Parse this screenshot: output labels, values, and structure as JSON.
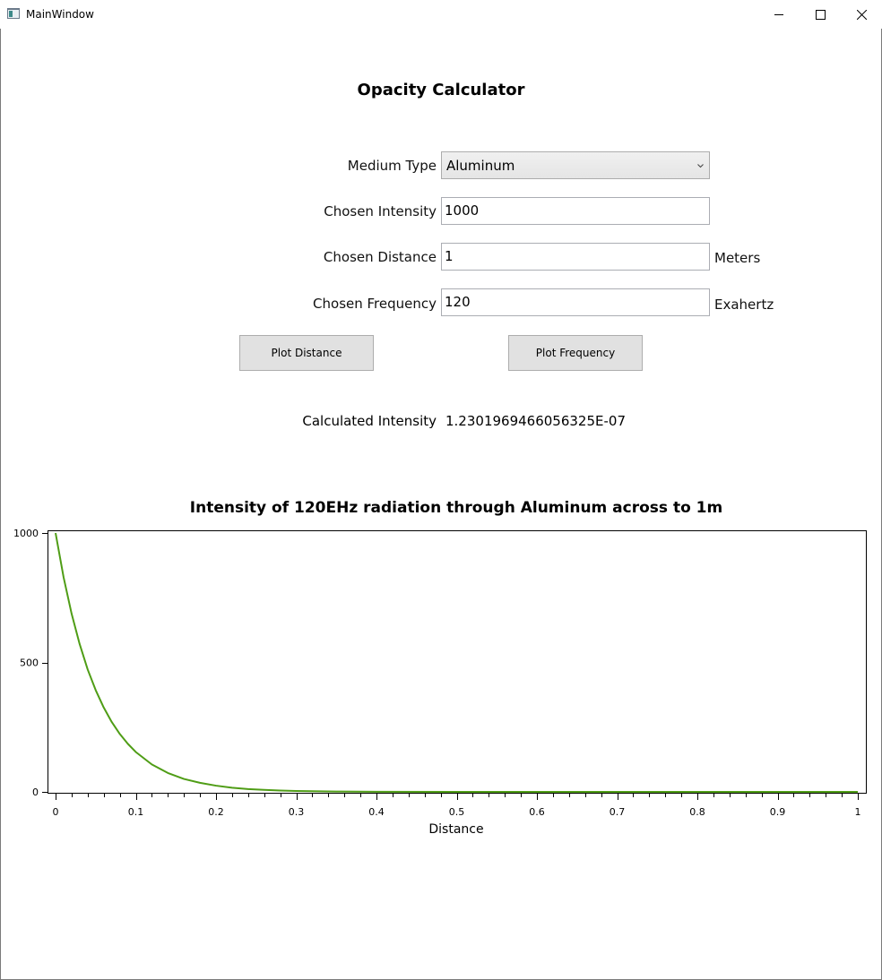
{
  "window": {
    "title": "MainWindow"
  },
  "heading": "Opacity Calculator",
  "form": {
    "medium_label": "Medium Type",
    "medium_value": "Aluminum",
    "intensity_label": "Chosen Intensity",
    "intensity_value": "1000",
    "distance_label": "Chosen Distance",
    "distance_value": "1",
    "distance_unit": "Meters",
    "frequency_label": "Chosen Frequency",
    "frequency_value": "120",
    "frequency_unit": "Exahertz"
  },
  "buttons": {
    "plot_distance": "Plot Distance",
    "plot_frequency": "Plot Frequency"
  },
  "result": {
    "label": "Calculated Intensity",
    "value": "1.2301969466056325E-07"
  },
  "chart_data": {
    "type": "line",
    "title": "Intensity of 120EHz radiation through Aluminum across to 1m",
    "xlabel": "Distance",
    "ylabel": "",
    "xlim": [
      0,
      1
    ],
    "ylim": [
      0,
      1000
    ],
    "xticks": [
      "0",
      "0.1",
      "0.2",
      "0.3",
      "0.4",
      "0.5",
      "0.6",
      "0.7",
      "0.8",
      "0.9",
      "1"
    ],
    "yticks": [
      "0",
      "500",
      "1000"
    ],
    "grid": false,
    "series": [
      {
        "color": "#4f9d16",
        "x": [
          0,
          0.01,
          0.02,
          0.03,
          0.04,
          0.05,
          0.06,
          0.07,
          0.08,
          0.09,
          0.1,
          0.12,
          0.14,
          0.16,
          0.18,
          0.2,
          0.22,
          0.24,
          0.26,
          0.28,
          0.3,
          0.35,
          0.4,
          0.5,
          0.6,
          0.7,
          0.8,
          0.9,
          1
        ],
        "y": [
          1000,
          829,
          688,
          571,
          473,
          393,
          326,
          270,
          224,
          186,
          154,
          106,
          73,
          50,
          35,
          24,
          16,
          11,
          7.7,
          5.3,
          3.6,
          1.5,
          0.6,
          0.1,
          0.02,
          0.003,
          0.0005,
          0.0001,
          1e-07
        ]
      }
    ]
  }
}
